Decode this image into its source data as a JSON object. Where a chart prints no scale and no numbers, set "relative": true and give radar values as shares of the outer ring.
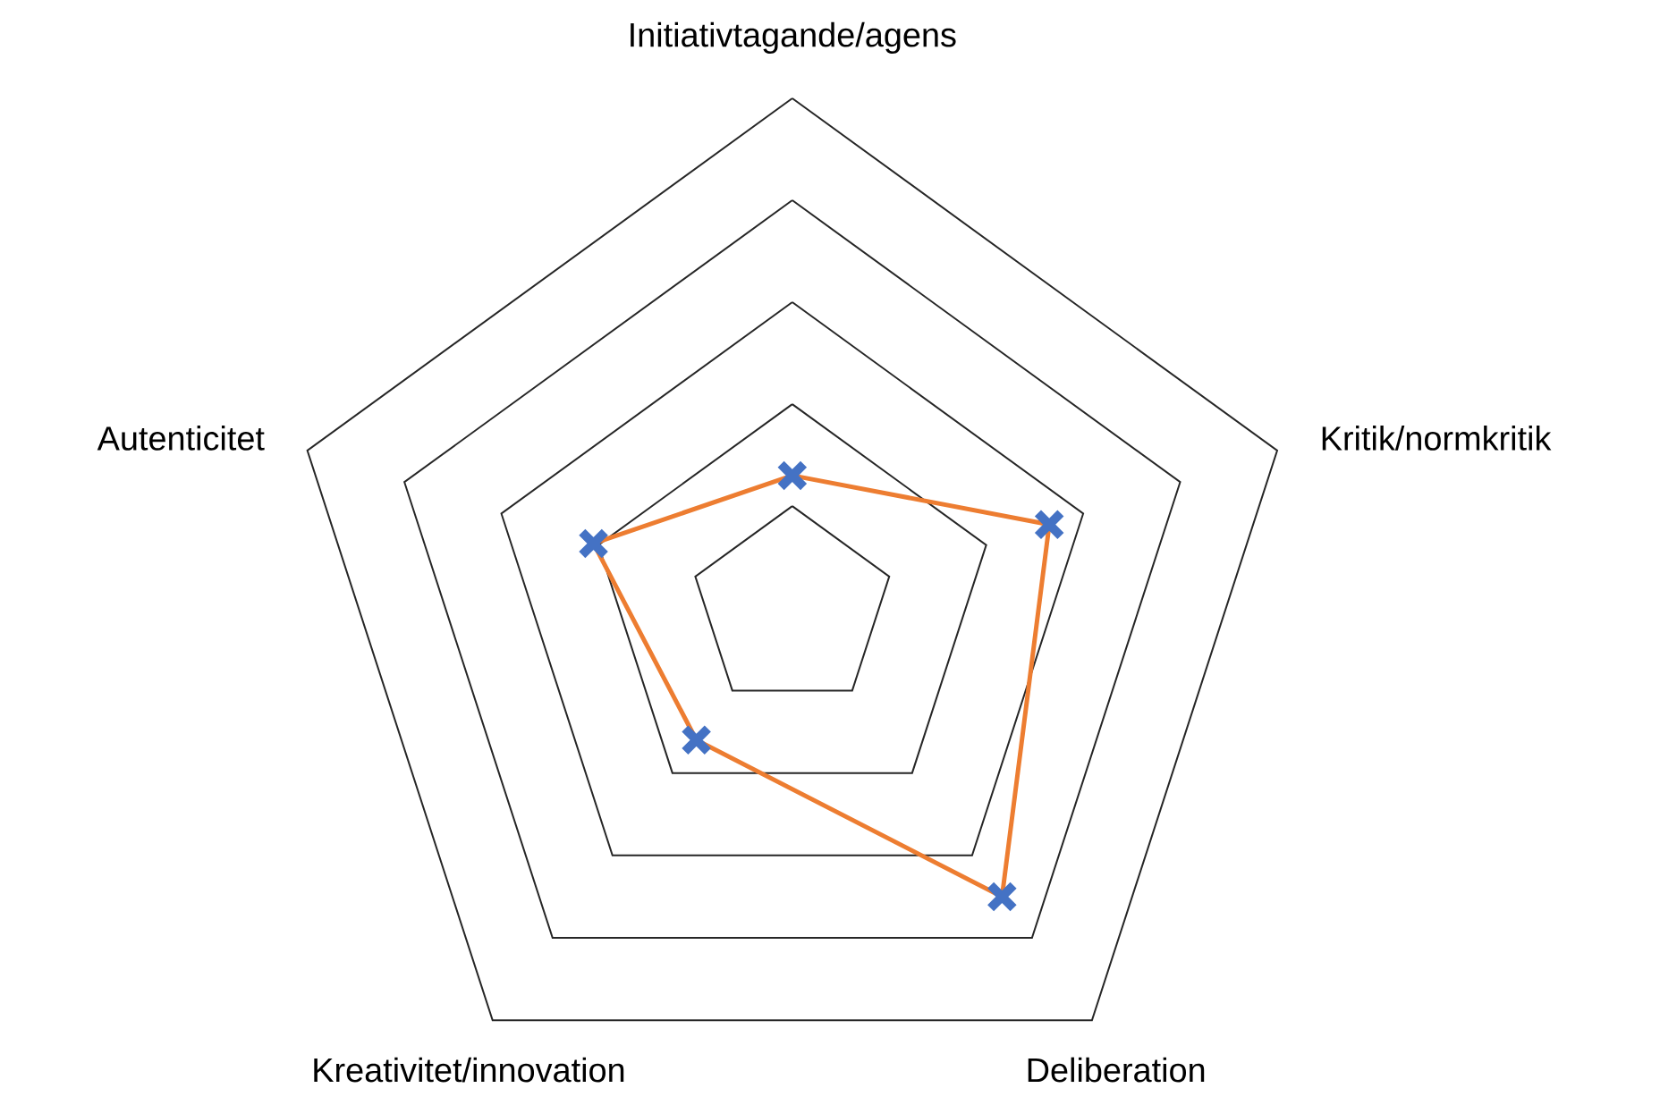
{
  "chart_data": {
    "type": "radar",
    "relative": true,
    "grid": true,
    "marker": "cross",
    "line_style": "solid",
    "categories": [
      "Initiativtagande/agens",
      "Kritik/normkritik",
      "Deliberation",
      "Kreativitet/innovation",
      "Autenticitet"
    ],
    "series": [
      {
        "color": "#ed7d31",
        "colors": [
          "#4472c4",
          "#4472c4",
          "#4472c4",
          "#4472c4",
          "#4472c4"
        ],
        "values": [
          0.26,
          0.53,
          0.7,
          0.32,
          0.41
        ]
      }
    ]
  }
}
